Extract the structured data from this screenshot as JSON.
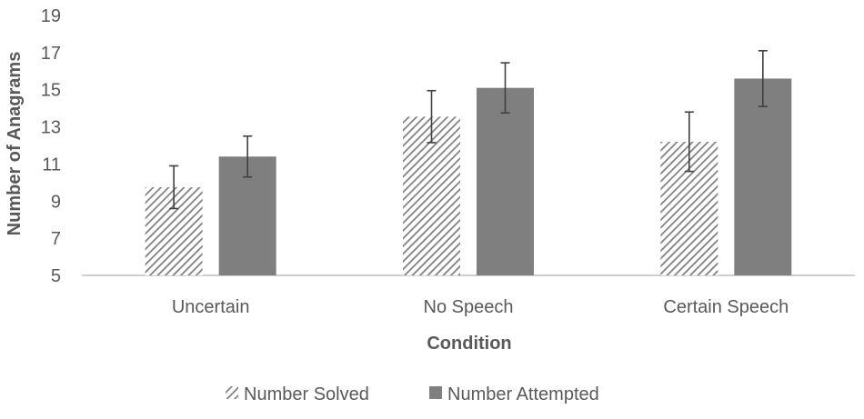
{
  "chart_data": {
    "type": "bar",
    "title": "",
    "xlabel": "Condition",
    "ylabel": "Number of Anagrams",
    "ylim": [
      5,
      19
    ],
    "yticks": [
      5,
      7,
      9,
      11,
      13,
      15,
      17,
      19
    ],
    "grid": false,
    "legend_position": "bottom",
    "categories": [
      "Uncertain",
      "No Speech",
      "Certain Speech"
    ],
    "series": [
      {
        "name": "Number Solved",
        "pattern": "diagonal-hatch",
        "color": "#7f7f7f",
        "values": [
          9.75,
          13.55,
          12.2
        ],
        "error": [
          1.15,
          1.4,
          1.6
        ]
      },
      {
        "name": "Number Attempted",
        "pattern": "solid",
        "color": "#7f7f7f",
        "values": [
          11.4,
          15.1,
          15.6
        ],
        "error": [
          1.1,
          1.35,
          1.5
        ]
      }
    ]
  }
}
